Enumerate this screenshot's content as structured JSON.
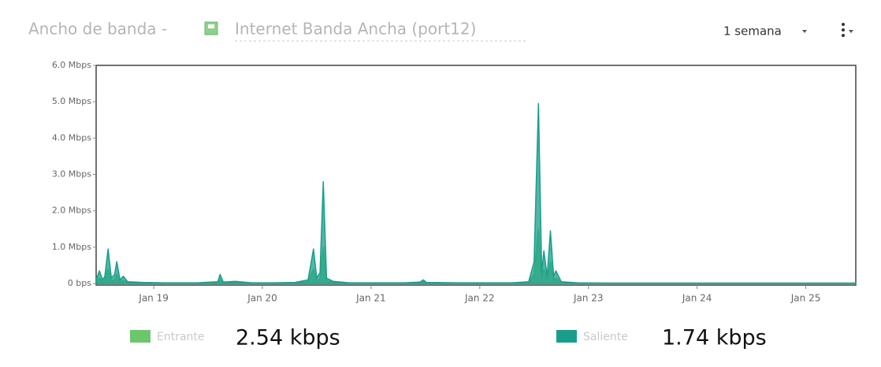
{
  "header": {
    "title": "Ancho de banda -",
    "interface": "Internet Banda Ancha (port12)",
    "range": "1 semana"
  },
  "chart_data": {
    "type": "area",
    "x": [
      18.47,
      18.5,
      18.53,
      18.55,
      18.58,
      18.61,
      18.64,
      18.66,
      18.69,
      18.72,
      18.76,
      18.9,
      19.1,
      19.4,
      19.59,
      19.61,
      19.64,
      19.75,
      19.9,
      20.1,
      20.3,
      20.42,
      20.47,
      20.5,
      20.53,
      20.56,
      20.59,
      20.65,
      20.8,
      21.0,
      21.3,
      21.45,
      21.48,
      21.51,
      21.8,
      22.1,
      22.3,
      22.45,
      22.5,
      22.54,
      22.57,
      22.59,
      22.62,
      22.65,
      22.68,
      22.7,
      22.75,
      22.9,
      23.2,
      23.6,
      24.0,
      24.4,
      24.8,
      25.2,
      25.46
    ],
    "xlim": [
      18.47,
      25.46
    ],
    "xticks": [
      {
        "value": 19,
        "label": "Jan 19"
      },
      {
        "value": 20,
        "label": "Jan 20"
      },
      {
        "value": 21,
        "label": "Jan 21"
      },
      {
        "value": 22,
        "label": "Jan 22"
      },
      {
        "value": 23,
        "label": "Jan 23"
      },
      {
        "value": 24,
        "label": "Jan 24"
      },
      {
        "value": 25,
        "label": "Jan 25"
      }
    ],
    "ylim": [
      0,
      6
    ],
    "yticks": [
      {
        "value": 0,
        "label": "0 bps"
      },
      {
        "value": 1,
        "label": "1.0 Mbps"
      },
      {
        "value": 2,
        "label": "2.0 Mbps"
      },
      {
        "value": 3,
        "label": "3.0 Mbps"
      },
      {
        "value": 4,
        "label": "4.0 Mbps"
      },
      {
        "value": 5,
        "label": "5.0 Mbps"
      },
      {
        "value": 6,
        "label": "6.0 Mbps"
      }
    ],
    "series": [
      {
        "name": "Entrante",
        "color": "#6cc66c",
        "current_label": "2.54 kbps",
        "values": [
          0.05,
          0.15,
          0.05,
          0.1,
          0.4,
          0.08,
          0.1,
          0.25,
          0.05,
          0.08,
          0.03,
          0.02,
          0.01,
          0.01,
          0.03,
          0.1,
          0.02,
          0.03,
          0.01,
          0.01,
          0.02,
          0.05,
          0.4,
          0.08,
          0.12,
          1.0,
          0.08,
          0.03,
          0.01,
          0.01,
          0.01,
          0.02,
          0.05,
          0.02,
          0.01,
          0.01,
          0.01,
          0.03,
          0.25,
          1.5,
          0.15,
          0.4,
          0.1,
          0.6,
          0.1,
          0.15,
          0.03,
          0.01,
          0.01,
          0.01,
          0.01,
          0.01,
          0.01,
          0.01,
          0.01
        ]
      },
      {
        "name": "Saliente",
        "color": "#1a9e8c",
        "current_label": "1.74 kbps",
        "values": [
          0.1,
          0.35,
          0.1,
          0.2,
          0.95,
          0.15,
          0.25,
          0.6,
          0.1,
          0.2,
          0.05,
          0.03,
          0.02,
          0.02,
          0.05,
          0.25,
          0.04,
          0.06,
          0.02,
          0.02,
          0.03,
          0.1,
          0.95,
          0.15,
          0.3,
          2.8,
          0.15,
          0.06,
          0.02,
          0.02,
          0.02,
          0.04,
          0.1,
          0.03,
          0.02,
          0.02,
          0.02,
          0.05,
          0.6,
          4.95,
          0.3,
          0.9,
          0.2,
          1.45,
          0.2,
          0.35,
          0.05,
          0.02,
          0.01,
          0.01,
          0.01,
          0.01,
          0.01,
          0.01,
          0.01
        ]
      }
    ]
  }
}
